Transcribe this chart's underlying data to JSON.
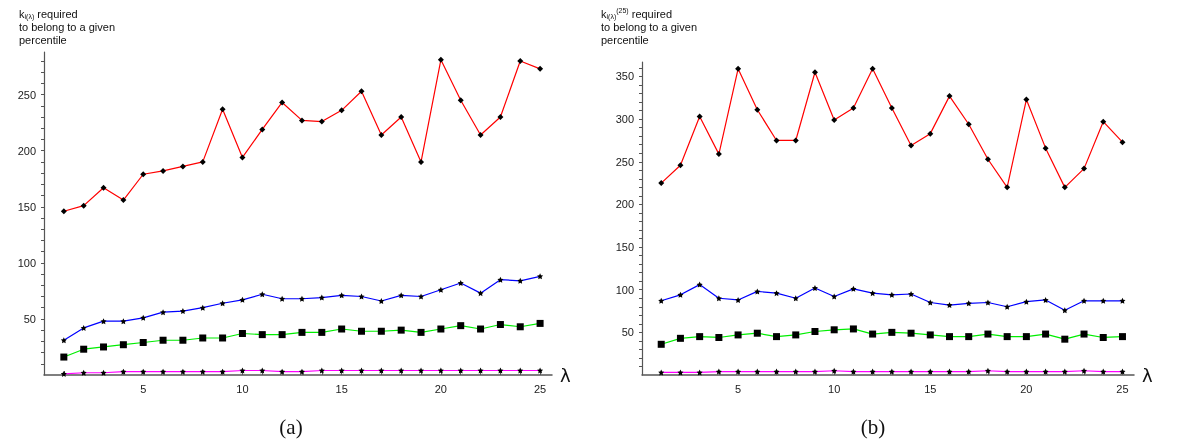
{
  "chart_data": [
    {
      "type": "line",
      "ylabel": "k$_{i(λ)}$ required\nto belong to a given\npercentile",
      "xlabel": "λ",
      "annotations": [
        "(a)"
      ],
      "x": [
        1,
        2,
        3,
        4,
        5,
        6,
        7,
        8,
        9,
        10,
        11,
        12,
        13,
        14,
        15,
        16,
        17,
        18,
        19,
        20,
        21,
        22,
        23,
        24,
        25
      ],
      "xlim": [
        0,
        25.6
      ],
      "ylim": [
        0,
        288
      ],
      "xticks": [
        {
          "value": 1,
          "label": null
        },
        {
          "value": 2,
          "label": null
        },
        {
          "value": 3,
          "label": null
        },
        {
          "value": 4,
          "label": null
        },
        5,
        {
          "value": 6,
          "label": null
        },
        {
          "value": 7,
          "label": null
        },
        {
          "value": 8,
          "label": null
        },
        {
          "value": 9,
          "label": null
        },
        10,
        {
          "value": 11,
          "label": null
        },
        {
          "value": 12,
          "label": null
        },
        {
          "value": 13,
          "label": null
        },
        {
          "value": 14,
          "label": null
        },
        15,
        {
          "value": 16,
          "label": null
        },
        {
          "value": 17,
          "label": null
        },
        {
          "value": 18,
          "label": null
        },
        {
          "value": 19,
          "label": null
        },
        20,
        {
          "value": 21,
          "label": null
        },
        {
          "value": 22,
          "label": null
        },
        {
          "value": 23,
          "label": null
        },
        {
          "value": 24,
          "label": null
        },
        25
      ],
      "yticks": [
        {
          "value": 10,
          "label": null
        },
        {
          "value": 20,
          "label": null
        },
        {
          "value": 30,
          "label": null
        },
        {
          "value": 40,
          "label": null
        },
        50,
        {
          "value": 60,
          "label": null
        },
        {
          "value": 70,
          "label": null
        },
        {
          "value": 80,
          "label": null
        },
        {
          "value": 90,
          "label": null
        },
        100,
        {
          "value": 110,
          "label": null
        },
        {
          "value": 120,
          "label": null
        },
        {
          "value": 130,
          "label": null
        },
        {
          "value": 140,
          "label": null
        },
        150,
        {
          "value": 160,
          "label": null
        },
        {
          "value": 170,
          "label": null
        },
        {
          "value": 180,
          "label": null
        },
        {
          "value": 190,
          "label": null
        },
        200,
        {
          "value": 210,
          "label": null
        },
        {
          "value": 220,
          "label": null
        },
        {
          "value": 230,
          "label": null
        },
        {
          "value": 240,
          "label": null
        },
        250,
        {
          "value": 260,
          "label": null
        },
        {
          "value": 270,
          "label": null
        },
        {
          "value": 280,
          "label": null
        }
      ],
      "grid": false,
      "line_style": "solid",
      "series": [
        {
          "color": "#ff0000",
          "marker": "diamond",
          "values": [
            146,
            151,
            167,
            156,
            179,
            182,
            186,
            190,
            237,
            194,
            219,
            243,
            227,
            226,
            236,
            253,
            214,
            230,
            190,
            281,
            245,
            214,
            230,
            280,
            273
          ]
        },
        {
          "color": "#0000ff",
          "marker": "star",
          "values": [
            31,
            42,
            48,
            48,
            51,
            56,
            57,
            60,
            64,
            67,
            72,
            68,
            68,
            69,
            71,
            70,
            66,
            71,
            70,
            76,
            82,
            73,
            85,
            84,
            88
          ]
        },
        {
          "color": "#00ee00",
          "marker": "square",
          "values": [
            16,
            23,
            25,
            27,
            29,
            31,
            31,
            33,
            33,
            37,
            36,
            36,
            38,
            38,
            41,
            39,
            39,
            40,
            38,
            41,
            44,
            41,
            45,
            43,
            46
          ]
        },
        {
          "color": "#ff00ff",
          "marker": "star",
          "values": [
            1,
            2,
            2,
            3,
            3,
            3,
            3,
            3,
            3,
            4,
            4,
            3,
            3,
            4,
            4,
            4,
            4,
            4,
            4,
            4,
            4,
            4,
            4,
            4,
            4
          ]
        }
      ]
    },
    {
      "type": "line",
      "ylabel": "k$_{i(λ)}$$^{(25)}$ required\nto belong to a given\npercentile",
      "xlabel": "λ",
      "annotations": [
        "(b)"
      ],
      "x": [
        1,
        2,
        3,
        4,
        5,
        6,
        7,
        8,
        9,
        10,
        11,
        12,
        13,
        14,
        15,
        16,
        17,
        18,
        19,
        20,
        21,
        22,
        23,
        24,
        25
      ],
      "xlim": [
        0,
        25.6
      ],
      "ylim": [
        0,
        367
      ],
      "xticks": [
        {
          "value": 1,
          "label": null
        },
        {
          "value": 2,
          "label": null
        },
        {
          "value": 3,
          "label": null
        },
        {
          "value": 4,
          "label": null
        },
        5,
        {
          "value": 6,
          "label": null
        },
        {
          "value": 7,
          "label": null
        },
        {
          "value": 8,
          "label": null
        },
        {
          "value": 9,
          "label": null
        },
        10,
        {
          "value": 11,
          "label": null
        },
        {
          "value": 12,
          "label": null
        },
        {
          "value": 13,
          "label": null
        },
        {
          "value": 14,
          "label": null
        },
        15,
        {
          "value": 16,
          "label": null
        },
        {
          "value": 17,
          "label": null
        },
        {
          "value": 18,
          "label": null
        },
        {
          "value": 19,
          "label": null
        },
        20,
        {
          "value": 21,
          "label": null
        },
        {
          "value": 22,
          "label": null
        },
        {
          "value": 23,
          "label": null
        },
        {
          "value": 24,
          "label": null
        },
        25
      ],
      "yticks": [
        {
          "value": 10,
          "label": null
        },
        {
          "value": 20,
          "label": null
        },
        {
          "value": 30,
          "label": null
        },
        {
          "value": 40,
          "label": null
        },
        50,
        {
          "value": 60,
          "label": null
        },
        {
          "value": 70,
          "label": null
        },
        {
          "value": 80,
          "label": null
        },
        {
          "value": 90,
          "label": null
        },
        100,
        {
          "value": 110,
          "label": null
        },
        {
          "value": 120,
          "label": null
        },
        {
          "value": 130,
          "label": null
        },
        {
          "value": 140,
          "label": null
        },
        150,
        {
          "value": 160,
          "label": null
        },
        {
          "value": 170,
          "label": null
        },
        {
          "value": 180,
          "label": null
        },
        {
          "value": 190,
          "label": null
        },
        200,
        {
          "value": 210,
          "label": null
        },
        {
          "value": 220,
          "label": null
        },
        {
          "value": 230,
          "label": null
        },
        {
          "value": 240,
          "label": null
        },
        250,
        {
          "value": 260,
          "label": null
        },
        {
          "value": 270,
          "label": null
        },
        {
          "value": 280,
          "label": null
        },
        {
          "value": 290,
          "label": null
        },
        300,
        {
          "value": 310,
          "label": null
        },
        {
          "value": 320,
          "label": null
        },
        {
          "value": 330,
          "label": null
        },
        {
          "value": 340,
          "label": null
        },
        350,
        {
          "value": 360,
          "label": null
        }
      ],
      "grid": false,
      "line_style": "solid",
      "series": [
        {
          "color": "#ff0000",
          "marker": "diamond",
          "values": [
            225,
            246,
            303,
            259,
            359,
            311,
            275,
            275,
            355,
            299,
            313,
            359,
            313,
            269,
            283,
            327,
            294,
            253,
            220,
            323,
            266,
            220,
            242,
            297,
            273
          ]
        },
        {
          "color": "#0000ff",
          "marker": "star",
          "values": [
            87,
            94,
            106,
            90,
            88,
            98,
            96,
            90,
            102,
            92,
            101,
            96,
            94,
            95,
            85,
            82,
            84,
            85,
            80,
            86,
            88,
            76,
            87,
            87,
            87
          ]
        },
        {
          "color": "#00ee00",
          "marker": "square",
          "values": [
            36,
            43,
            45,
            44,
            47,
            49,
            45,
            47,
            51,
            53,
            54,
            48,
            50,
            49,
            47,
            45,
            45,
            48,
            45,
            45,
            48,
            42,
            48,
            44,
            45
          ]
        },
        {
          "color": "#ff00ff",
          "marker": "star",
          "values": [
            3,
            3,
            3,
            4,
            4,
            4,
            4,
            4,
            4,
            5,
            4,
            4,
            4,
            4,
            4,
            4,
            4,
            5,
            4,
            4,
            4,
            4,
            5,
            4,
            4
          ]
        }
      ]
    }
  ]
}
